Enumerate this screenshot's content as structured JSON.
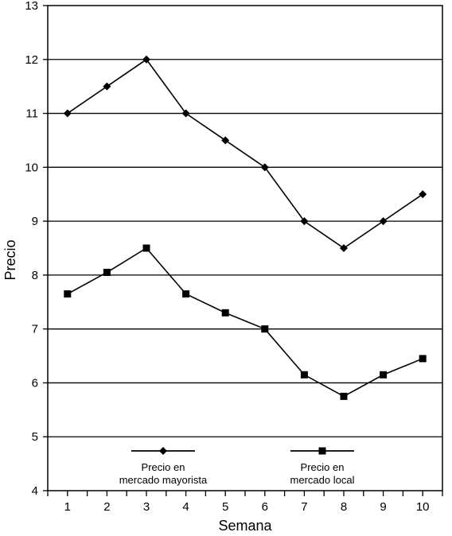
{
  "chart_data": {
    "type": "line",
    "title": "",
    "xlabel": "Semana",
    "ylabel": "Precio",
    "x": [
      1,
      2,
      3,
      4,
      5,
      6,
      7,
      8,
      9,
      10
    ],
    "xlim": [
      0.5,
      10.5
    ],
    "ylim": [
      4,
      13
    ],
    "yticks": [
      4,
      5,
      6,
      7,
      8,
      9,
      10,
      11,
      12,
      13
    ],
    "grid": "horizontal",
    "legend_position": "bottom-inside",
    "series": [
      {
        "name": "Precio en mercado mayorista",
        "name_lines": [
          "Precio en",
          "mercado mayorista"
        ],
        "marker": "diamond",
        "values": [
          11.0,
          11.5,
          12.0,
          11.0,
          10.5,
          10.0,
          9.0,
          8.5,
          9.0,
          9.5
        ]
      },
      {
        "name": "Precio en mercado local",
        "name_lines": [
          "Precio en",
          "mercado local"
        ],
        "marker": "square",
        "values": [
          7.65,
          8.05,
          8.5,
          7.65,
          7.3,
          7.0,
          6.15,
          5.75,
          6.15,
          6.45
        ]
      }
    ],
    "colors": {
      "line": "#000000",
      "grid": "#000000",
      "background": "#ffffff"
    }
  }
}
